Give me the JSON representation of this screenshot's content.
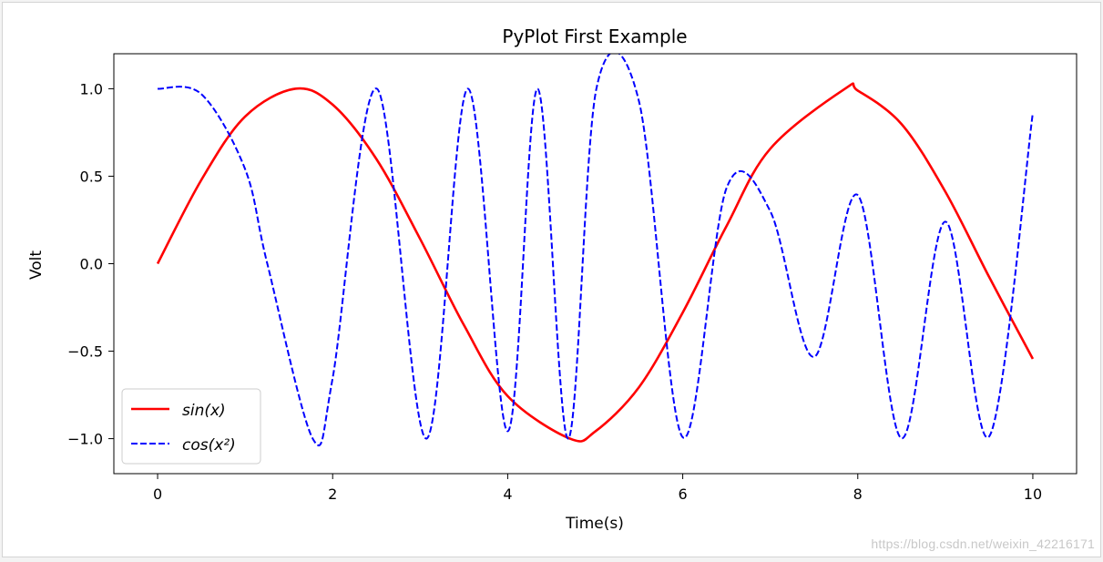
{
  "chart_data": {
    "type": "line",
    "title": "PyPlot First Example",
    "xlabel": "Time(s)",
    "ylabel": "Volt",
    "xlim": [
      -0.5,
      10.5
    ],
    "ylim": [
      -1.2,
      1.2
    ],
    "xticks": [
      0,
      2,
      4,
      6,
      8,
      10
    ],
    "xtick_labels": [
      "0",
      "2",
      "4",
      "6",
      "8",
      "10"
    ],
    "yticks": [
      -1.0,
      -0.5,
      0.0,
      0.5,
      1.0
    ],
    "ytick_labels": [
      "−1.0",
      "−0.5",
      "0.0",
      "0.5",
      "1.0"
    ],
    "grid": false,
    "legend_position": "lower left",
    "series": [
      {
        "name": "sin(x)",
        "color": "#ff0000",
        "style": "solid",
        "x": [
          0,
          0.5,
          1,
          1.5708,
          2,
          2.5,
          3,
          3.5,
          4,
          4.7124,
          5,
          5.5,
          6,
          6.5,
          7,
          7.854,
          8,
          8.5,
          9,
          9.5,
          10
        ],
        "y": [
          0,
          0.479,
          0.841,
          1.0,
          0.909,
          0.598,
          0.141,
          -0.351,
          -0.757,
          -1.0,
          -0.959,
          -0.706,
          -0.279,
          0.215,
          0.657,
          1.0,
          0.989,
          0.798,
          0.412,
          -0.075,
          -0.544
        ]
      },
      {
        "name": "cos(x²)",
        "color": "#0000ff",
        "style": "dashed",
        "x": [
          0,
          0.5,
          1,
          1.2533,
          1.7725,
          2,
          2.5066,
          3.07,
          3.5449,
          4,
          4.3416,
          4.6895,
          5.0133,
          5.5,
          6,
          6.5,
          7,
          7.5,
          8,
          8.5,
          9,
          9.5,
          10
        ],
        "y": [
          1.0,
          0.969,
          0.54,
          0.0,
          -1.0,
          -0.654,
          1.0,
          -1.0,
          1.0,
          -0.958,
          1.0,
          -1.0,
          1.0,
          0.928,
          -0.992,
          0.432,
          0.3,
          -0.533,
          0.392,
          -0.998,
          0.24,
          -0.988,
          0.862
        ]
      }
    ]
  },
  "watermark": "https://blog.csdn.net/weixin_42216171"
}
